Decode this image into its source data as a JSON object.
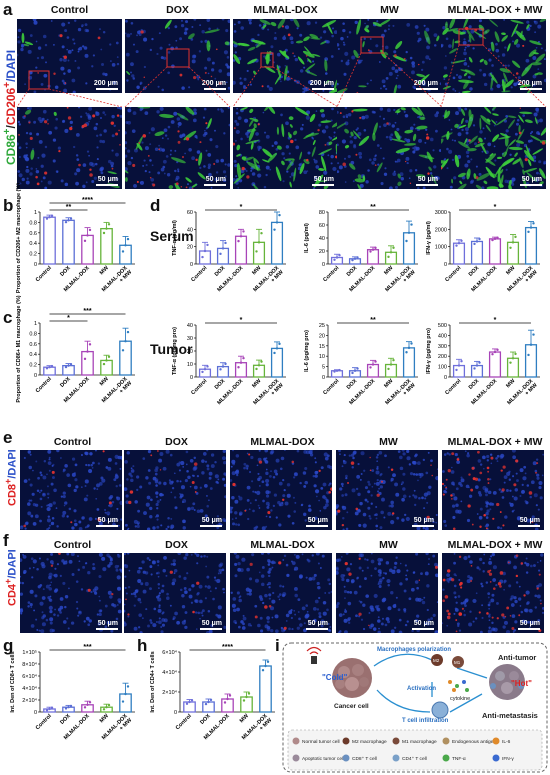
{
  "panels": {
    "a": "a",
    "b": "b",
    "c": "c",
    "d": "d",
    "e": "e",
    "f": "f",
    "g": "g",
    "h": "h",
    "i": "i"
  },
  "groups": [
    "Control",
    "DOX",
    "MLMAL-DOX",
    "MW",
    "MLMAL-DOX + MW"
  ],
  "colors": {
    "Control": "#6f6fdb",
    "DOX": "#5b6fd6",
    "MLMAL-DOX": "#a844b8",
    "MW": "#66b43a",
    "MLMAL-DOX + MW": "#2f7ec1",
    "stain_green": "#34c93a",
    "stain_red": "#e0332f",
    "stain_blue": "#3a5fd6"
  },
  "panel_a": {
    "stain_label_green": "CD86",
    "stain_label_sep": "/",
    "stain_label_red": "CD206",
    "stain_label_dapi": "/DAPI",
    "scale_top": "200 μm",
    "scale_bottom": "50 μm"
  },
  "panel_e": {
    "stain_label_red": "CD8",
    "stain_label_dapi": "/DAPI",
    "scale": "50 μm"
  },
  "panel_f": {
    "stain_label_red": "CD4",
    "stain_label_dapi": "/DAPI",
    "scale": "50 μm"
  },
  "row_labels": {
    "serum": "Serum",
    "tumor": "Tumor"
  },
  "chart_data": [
    {
      "id": "b",
      "type": "bar",
      "categories": [
        "Control",
        "DOX",
        "MLMAL-DOX",
        "MW",
        "MLMAL-DOX\n+ MW"
      ],
      "values": [
        0.9,
        0.84,
        0.55,
        0.68,
        0.36
      ],
      "errors": [
        0.04,
        0.05,
        0.15,
        0.12,
        0.17
      ],
      "ylabel": "Proportion of CD206+ M2 macrophage (%)",
      "yticks": [
        0.0,
        0.2,
        0.4,
        0.6,
        0.8,
        1.0
      ],
      "ylim": [
        0,
        1.0
      ],
      "significance": [
        {
          "label": "**",
          "from": 0,
          "to": 2
        },
        {
          "label": "****",
          "from": 0,
          "to": 4
        }
      ]
    },
    {
      "id": "c",
      "type": "bar",
      "categories": [
        "Control",
        "DOX",
        "MLMAL-DOX",
        "MW",
        "MLMAL-DOX\n+ MW"
      ],
      "values": [
        0.15,
        0.18,
        0.45,
        0.28,
        0.65
      ],
      "errors": [
        0.03,
        0.04,
        0.2,
        0.1,
        0.25
      ],
      "ylabel": "Proportion of CD86+ M1 macrophage (%)",
      "yticks": [
        0.0,
        0.2,
        0.4,
        0.6,
        0.8,
        1.0
      ],
      "ylim": [
        0,
        1.0
      ],
      "significance": [
        {
          "label": "*",
          "from": 0,
          "to": 2
        },
        {
          "label": "***",
          "from": 0,
          "to": 4
        }
      ]
    },
    {
      "id": "d1",
      "type": "bar",
      "categories": [
        "Control",
        "DOX",
        "MLMAL-DOX",
        "MW",
        "MLMAL-DOX\n+ MW"
      ],
      "values": [
        15,
        18,
        32,
        25,
        48
      ],
      "errors": [
        10,
        9,
        8,
        15,
        12
      ],
      "ylabel": "TNF-α (pg/ml)",
      "yticks": [
        0,
        20,
        40,
        60
      ],
      "ylim": [
        0,
        60
      ],
      "significance": [
        {
          "label": "*",
          "from": 0,
          "to": 4
        }
      ]
    },
    {
      "id": "d2",
      "type": "bar",
      "categories": [
        "Control",
        "DOX",
        "MLMAL-DOX",
        "MW",
        "MLMAL-DOX\n+ MW"
      ],
      "values": [
        10,
        8,
        22,
        18,
        48
      ],
      "errors": [
        5,
        3,
        4,
        10,
        18
      ],
      "ylabel": "IL-6 (pg/ml)",
      "yticks": [
        0,
        20,
        40,
        60,
        80
      ],
      "ylim": [
        0,
        80
      ],
      "significance": [
        {
          "label": "**",
          "from": 0,
          "to": 4
        }
      ]
    },
    {
      "id": "d3",
      "type": "bar",
      "categories": [
        "Control",
        "DOX",
        "MLMAL-DOX",
        "MW",
        "MLMAL-DOX\n+ MW"
      ],
      "values": [
        1200,
        1300,
        1450,
        1250,
        2100
      ],
      "errors": [
        200,
        200,
        100,
        450,
        350
      ],
      "ylabel": "IFN-γ (pg/ml)",
      "yticks": [
        0,
        1000,
        2000,
        3000
      ],
      "ylim": [
        0,
        3000
      ],
      "significance": [
        {
          "label": "*",
          "from": 0,
          "to": 4
        }
      ]
    },
    {
      "id": "d4",
      "type": "bar",
      "categories": [
        "Control",
        "DOX",
        "MLMAL-DOX",
        "MW",
        "MLMAL-DOX\n+ MW"
      ],
      "values": [
        6,
        8,
        11,
        9,
        22
      ],
      "errors": [
        3,
        3,
        5,
        4,
        5
      ],
      "ylabel": "TNF-α (pg/mg pro)",
      "yticks": [
        0,
        10,
        20,
        30,
        40
      ],
      "ylim": [
        0,
        40
      ],
      "significance": [
        {
          "label": "*",
          "from": 0,
          "to": 4
        }
      ]
    },
    {
      "id": "d5",
      "type": "bar",
      "categories": [
        "Control",
        "DOX",
        "MLMAL-DOX",
        "MW",
        "MLMAL-DOX\n+ MW"
      ],
      "values": [
        3,
        3,
        6,
        6,
        14
      ],
      "errors": [
        0.5,
        1.5,
        2,
        3,
        3
      ],
      "ylabel": "IL-6 (pg/mg pro)",
      "yticks": [
        0,
        5,
        10,
        15,
        20,
        25
      ],
      "ylim": [
        0,
        25
      ],
      "significance": [
        {
          "label": "**",
          "from": 0,
          "to": 4
        }
      ]
    },
    {
      "id": "d6",
      "type": "bar",
      "categories": [
        "Control",
        "DOX",
        "MLMAL-DOX",
        "MW",
        "MLMAL-DOX\n+ MW"
      ],
      "values": [
        110,
        110,
        240,
        180,
        310
      ],
      "errors": [
        60,
        40,
        30,
        60,
        140
      ],
      "ylabel": "IFN-γ (pg/mg pro)",
      "yticks": [
        0,
        100,
        200,
        300,
        400,
        500
      ],
      "ylim": [
        0,
        500
      ],
      "significance": [
        {
          "label": "*",
          "from": 0,
          "to": 4
        }
      ]
    },
    {
      "id": "g",
      "type": "bar",
      "categories": [
        "Control",
        "DOX",
        "MLMAL-DOX",
        "MW",
        "MLMAL-DOX\n+ MW"
      ],
      "values": [
        0.5,
        0.8,
        1.2,
        0.8,
        3.0
      ],
      "errors": [
        0.3,
        0.3,
        0.6,
        0.5,
        1.8
      ],
      "ylabel": "Int. Den of CD8+ T cells",
      "yticks": [
        "0",
        "2×10⁴",
        "4×10⁴",
        "6×10⁴",
        "8×10⁴",
        "1×10⁵"
      ],
      "ylim": [
        0,
        10
      ],
      "significance": [
        {
          "label": "***",
          "from": 0,
          "to": 4
        }
      ]
    },
    {
      "id": "h",
      "type": "bar",
      "categories": [
        "Control",
        "DOX",
        "MLMAL-DOX",
        "MW",
        "MLMAL-DOX\n+ MW"
      ],
      "values": [
        1.0,
        1.0,
        1.3,
        1.5,
        4.6
      ],
      "errors": [
        0.25,
        0.3,
        0.5,
        0.5,
        0.6
      ],
      "ylabel": "Int. Den of CD4+ T cells",
      "yticks": [
        "0",
        "2×10⁴",
        "4×10⁴",
        "6×10⁴"
      ],
      "ylim": [
        0,
        6
      ],
      "significance": [
        {
          "label": "****",
          "from": 0,
          "to": 4
        }
      ]
    }
  ],
  "panel_i": {
    "macro_pol": "Macrophages polarization",
    "anti_tumor": "Anti-tumor",
    "cold": "\"Cold\"",
    "hot": "\"Hot\"",
    "activation": "Activation",
    "cytokine": "cytokine",
    "cancer_cell": "Cancer cell",
    "tcell_inf": "T cell infiltration",
    "anti_meta": "Anti-metastasis",
    "m2": "M2",
    "m1": "M1",
    "legend": [
      {
        "label": "Normal tumor cell",
        "color": "#b08a8a"
      },
      {
        "label": "M2 macrophage",
        "color": "#6c3a2a"
      },
      {
        "label": "M1 macrophage",
        "color": "#7a4a3a"
      },
      {
        "label": "Endogenous antigen",
        "color": "#b09060"
      },
      {
        "label": "IL-6",
        "color": "#e08a2a"
      },
      {
        "label": "Apoptotic tumor cell",
        "color": "#9a8a9a"
      },
      {
        "label": "CD8⁺ T cell",
        "color": "#6a90c0"
      },
      {
        "label": "CD4⁺ T cell",
        "color": "#7aa0c8"
      },
      {
        "label": "TNF-α",
        "color": "#4aa84a"
      },
      {
        "label": "IFN-γ",
        "color": "#3a6ad0"
      }
    ]
  }
}
